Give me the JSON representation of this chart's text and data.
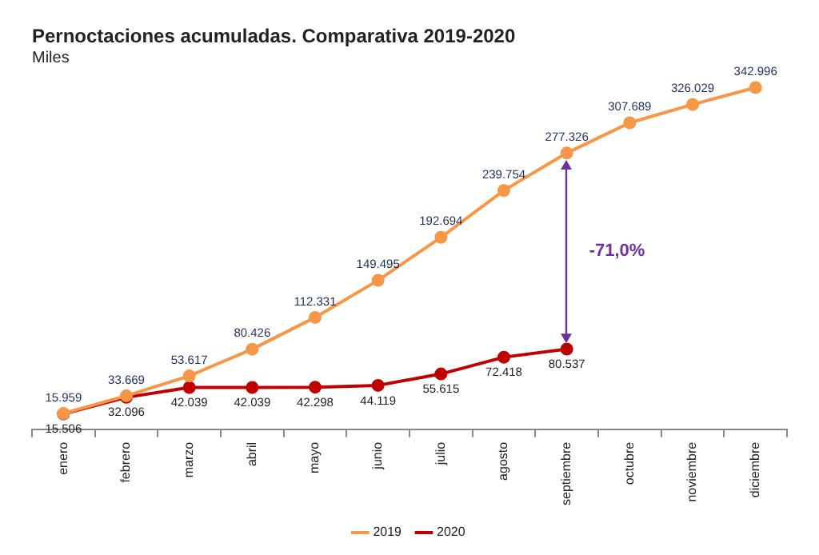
{
  "chart_data": {
    "type": "line",
    "title": "Pernoctaciones acumuladas. Comparativa 2019-2020",
    "subtitle": "Miles",
    "categories": [
      "enero",
      "febrero",
      "marzo",
      "abril",
      "mayo",
      "junio",
      "julio",
      "agosto",
      "septiembre",
      "octubre",
      "noviembre",
      "diciembre"
    ],
    "series": [
      {
        "name": "2019",
        "color": "#f79646",
        "values": [
          15959,
          33669,
          53617,
          80426,
          112331,
          149495,
          192694,
          239754,
          277326,
          307689,
          326029,
          342996
        ],
        "value_labels": [
          "15.959",
          "33.669",
          "53.617",
          "80.426",
          "112.331",
          "149.495",
          "192.694",
          "239.754",
          "277.326",
          "307.689",
          "326.029",
          "342.996"
        ]
      },
      {
        "name": "2020",
        "color": "#c00000",
        "values": [
          15506,
          32096,
          42039,
          42039,
          42298,
          44119,
          55615,
          72418,
          80537,
          null,
          null,
          null
        ],
        "value_labels": [
          "15.506",
          "32.096",
          "42.039",
          "42.039",
          "42.298",
          "44.119",
          "55.615",
          "72.418",
          "80.537",
          null,
          null,
          null
        ]
      }
    ],
    "annotations": [
      "-71,0%"
    ],
    "legend": "bottom",
    "marker": "circle",
    "line_style": "solid",
    "grid": false,
    "tick_labels": "x"
  }
}
